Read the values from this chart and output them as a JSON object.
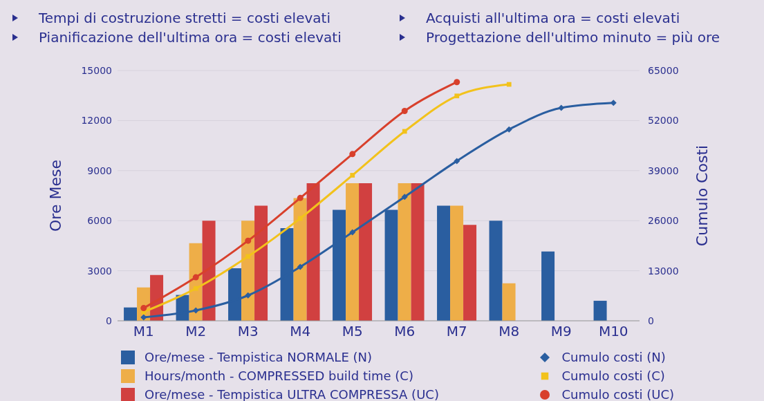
{
  "chart_data": {
    "type": "bar",
    "ylabel": "Ore Mese",
    "y2label": "Cumulo Costi",
    "annotations": [
      "Tempi di costruzione stretti = costi elevati",
      "Acquisti all'ultima ora = costi elevati",
      "Pianificazione dell'ultima ora = costi elevati",
      "Progettazione dell'ultimo minuto = più ore"
    ],
    "categories": [
      "M1",
      "M2",
      "M3",
      "M4",
      "M5",
      "M6",
      "M7",
      "M8",
      "M9",
      "M10"
    ],
    "series": [
      {
        "name": "Ore/mese - Tempistica NORMALE (N)",
        "color": "#2a5ea0",
        "values": [
          800,
          1550,
          3150,
          5550,
          6650,
          6650,
          6900,
          6000,
          4150,
          1200
        ]
      },
      {
        "name": "Hours/month - COMPRESSED build time (C)",
        "color": "#eeae48",
        "values": [
          2000,
          4650,
          6000,
          7350,
          8250,
          8250,
          6900,
          2250,
          null,
          null
        ]
      },
      {
        "name": "Ore/mese - Tempistica ULTRA COMPRESSA (UC)",
        "color": "#d14040",
        "values": [
          2750,
          6000,
          6900,
          8250,
          8250,
          8250,
          5750,
          null,
          null,
          null
        ]
      },
      {
        "name": "Cumulo costi (N)",
        "type": "line",
        "axis": "y2",
        "marker": "diamond",
        "color": "#2a5ea0",
        "values": [
          900,
          2700,
          6600,
          14000,
          23000,
          32200,
          41500,
          49700,
          55300,
          56600
        ]
      },
      {
        "name": "Cumulo costi (C)",
        "type": "line",
        "axis": "y2",
        "marker": "square",
        "color": "#f2c21c",
        "values": [
          2300,
          8400,
          16700,
          26600,
          37800,
          49200,
          58400,
          61400,
          null,
          null
        ]
      },
      {
        "name": "Cumulo costi (UC)",
        "type": "line",
        "axis": "y2",
        "marker": "circle",
        "color": "#d8402c",
        "values": [
          3300,
          11300,
          20800,
          31900,
          43300,
          54500,
          62000,
          null,
          null,
          null
        ]
      }
    ],
    "ylim": [
      0,
      15000
    ],
    "yticks": [
      0,
      3000,
      6000,
      9000,
      12000,
      15000
    ],
    "y2lim": [
      0,
      65000
    ],
    "y2ticks": [
      0,
      13000,
      26000,
      39000,
      52000,
      65000
    ],
    "grid": "y",
    "legend": "bottom"
  }
}
